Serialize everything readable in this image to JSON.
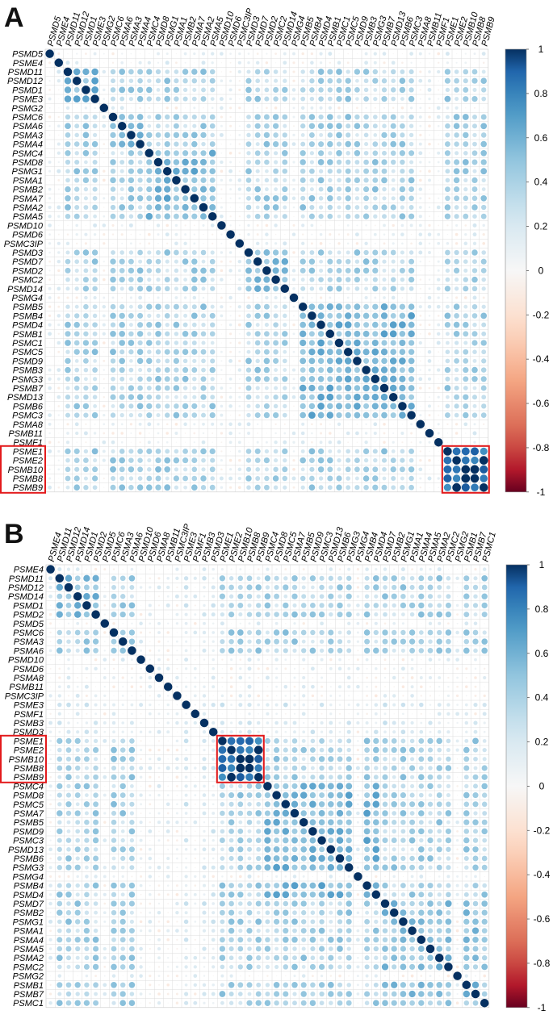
{
  "chart_data": [
    {
      "type": "heatmap",
      "panel": "A",
      "rows": [
        "PSMD5",
        "PSME4",
        "PSMD11",
        "PSMD12",
        "PSMD1",
        "PSME3",
        "PSMG2",
        "PSMC6",
        "PSMA6",
        "PSMA3",
        "PSMA4",
        "PSMC4",
        "PSMD8",
        "PSMG1",
        "PSMA1",
        "PSMB2",
        "PSMA7",
        "PSMA2",
        "PSMA5",
        "PSMD10",
        "PSMD6",
        "PSMC3IP",
        "PSMD3",
        "PSMD7",
        "PSMD2",
        "PSMC2",
        "PSMD14",
        "PSMG4",
        "PSMB5",
        "PSMB4",
        "PSMD4",
        "PSMB1",
        "PSMC1",
        "PSMC5",
        "PSMD9",
        "PSMB3",
        "PSMG3",
        "PSMB7",
        "PSMD13",
        "PSMB6",
        "PSMC3",
        "PSMA8",
        "PSMB11",
        "PSMF1",
        "PSME1",
        "PSME2",
        "PSMB10",
        "PSMB8",
        "PSMB9"
      ],
      "columns": [
        "PSMD5",
        "PSME4",
        "PSMD11",
        "PSMD12",
        "PSMD1",
        "PSME3",
        "PSMG2",
        "PSMC6",
        "PSMA6",
        "PSMA3",
        "PSMA4",
        "PSMC4",
        "PSMD8",
        "PSMG1",
        "PSMA1",
        "PSMB2",
        "PSMA7",
        "PSMA2",
        "PSMA5",
        "PSMD10",
        "PSMD6",
        "PSMC3IP",
        "PSMD3",
        "PSMD7",
        "PSMD2",
        "PSMC2",
        "PSMD14",
        "PSMG4",
        "PSMB5",
        "PSMB4",
        "PSMD4",
        "PSMB1",
        "PSMC1",
        "PSMC5",
        "PSMD9",
        "PSMB3",
        "PSMG3",
        "PSMB7",
        "PSMD13",
        "PSMB6",
        "PSMC3",
        "PSMA8",
        "PSMB11",
        "PSMF1",
        "PSME1",
        "PSME2",
        "PSMB10",
        "PSMB8",
        "PSMB9"
      ],
      "highlight_block": [
        "PSME1",
        "PSME2",
        "PSMB10",
        "PSMB8",
        "PSMB9"
      ],
      "colorbar": {
        "min": -1,
        "max": 1,
        "ticks": [
          "1",
          "0.8",
          "0.6",
          "0.4",
          "0.2",
          "0",
          "-0.2",
          "-0.4",
          "-0.6",
          "-0.8",
          "-1"
        ]
      },
      "colors": {
        "max": "#053061",
        "mid": "#f7f7f7",
        "min": "#67001f",
        "highlight_box": "#e31a1c"
      },
      "groups": [
        {
          "members": [
            "PSMD5",
            "PSME4",
            "PSMD11",
            "PSMD12",
            "PSMD1",
            "PSME3"
          ],
          "within": 0.55
        },
        {
          "members": [
            "PSMC6",
            "PSMA6",
            "PSMA3",
            "PSMA4"
          ],
          "within": 0.6
        },
        {
          "members": [
            "PSMC4",
            "PSMD8",
            "PSMG1",
            "PSMA1",
            "PSMB2",
            "PSMA7",
            "PSMA2",
            "PSMA5"
          ],
          "within": 0.55
        },
        {
          "members": [
            "PSMD3",
            "PSMD7",
            "PSMD2",
            "PSMC2",
            "PSMD14"
          ],
          "within": 0.5
        },
        {
          "members": [
            "PSMG4",
            "PSMB5",
            "PSMB4",
            "PSMD4",
            "PSMB1",
            "PSMC1",
            "PSMC5",
            "PSMD9",
            "PSMB3",
            "PSMG3",
            "PSMB7",
            "PSMD13",
            "PSMB6",
            "PSMC3"
          ],
          "within": 0.55
        },
        {
          "members": [
            "PSME1",
            "PSME2",
            "PSMB10",
            "PSMB8",
            "PSMB9"
          ],
          "within": 0.9
        }
      ]
    },
    {
      "type": "heatmap",
      "panel": "B",
      "rows": [
        "PSME4",
        "PSMD11",
        "PSMD12",
        "PSMD14",
        "PSMD1",
        "PSMD2",
        "PSMD5",
        "PSMC6",
        "PSMA3",
        "PSMA6",
        "PSMD10",
        "PSMD6",
        "PSMA8",
        "PSMB11",
        "PSMC3IP",
        "PSME3",
        "PSMF1",
        "PSMB3",
        "PSMD3",
        "PSME1",
        "PSME2",
        "PSMB10",
        "PSMB8",
        "PSMB9",
        "PSMC4",
        "PSMD8",
        "PSMC5",
        "PSMA7",
        "PSMB5",
        "PSMD9",
        "PSMC3",
        "PSMD13",
        "PSMB6",
        "PSMG3",
        "PSMG4",
        "PSMB4",
        "PSMD4",
        "PSMD7",
        "PSMB2",
        "PSMG1",
        "PSMA1",
        "PSMA4",
        "PSMA5",
        "PSMA2",
        "PSMC2",
        "PSMG2",
        "PSMB1",
        "PSMB7",
        "PSMC1"
      ],
      "columns": [
        "PSME4",
        "PSMD11",
        "PSMD12",
        "PSMD14",
        "PSMD1",
        "PSMD2",
        "PSMD5",
        "PSMC6",
        "PSMA3",
        "PSMA6",
        "PSMD10",
        "PSMD6",
        "PSMA8",
        "PSMB11",
        "PSMC3IP",
        "PSME3",
        "PSMF1",
        "PSMB3",
        "PSMD3",
        "PSME1",
        "PSME2",
        "PSMB10",
        "PSMB8",
        "PSMB9",
        "PSMC4",
        "PSMD8",
        "PSMC5",
        "PSMA7",
        "PSMB5",
        "PSMD9",
        "PSMC3",
        "PSMD13",
        "PSMB6",
        "PSMG3",
        "PSMG4",
        "PSMB4",
        "PSMD4",
        "PSMD7",
        "PSMB2",
        "PSMG1",
        "PSMA1",
        "PSMA4",
        "PSMA5",
        "PSMA2",
        "PSMC2",
        "PSMG2",
        "PSMB1",
        "PSMB7",
        "PSMC1"
      ],
      "highlight_block": [
        "PSME1",
        "PSME2",
        "PSMB10",
        "PSMB8",
        "PSMB9"
      ],
      "colorbar": {
        "min": -1,
        "max": 1,
        "ticks": [
          "1",
          "0.8",
          "0.6",
          "0.4",
          "0.2",
          "0",
          "-0.2",
          "-0.4",
          "-0.6",
          "-0.8",
          "-1"
        ]
      },
      "colors": {
        "max": "#053061",
        "mid": "#f7f7f7",
        "min": "#67001f",
        "highlight_box": "#e31a1c"
      },
      "groups": [
        {
          "members": [
            "PSME4",
            "PSMD11",
            "PSMD12",
            "PSMD14",
            "PSMD1",
            "PSMD2"
          ],
          "within": 0.55
        },
        {
          "members": [
            "PSMC6",
            "PSMA3",
            "PSMA6",
            "PSMD10"
          ],
          "within": 0.55
        },
        {
          "members": [
            "PSME1",
            "PSME2",
            "PSMB10",
            "PSMB8",
            "PSMB9"
          ],
          "within": 0.9
        },
        {
          "members": [
            "PSMC4",
            "PSMD8",
            "PSMC5",
            "PSMA7",
            "PSMB5",
            "PSMD9",
            "PSMC3",
            "PSMD13",
            "PSMB6",
            "PSMG3",
            "PSMG4",
            "PSMB4",
            "PSMD4"
          ],
          "within": 0.55
        },
        {
          "members": [
            "PSMD7",
            "PSMB2",
            "PSMG1",
            "PSMA1",
            "PSMA4",
            "PSMA5",
            "PSMA2",
            "PSMC2",
            "PSMG2",
            "PSMB1",
            "PSMB7",
            "PSMC1"
          ],
          "within": 0.5
        }
      ]
    }
  ]
}
